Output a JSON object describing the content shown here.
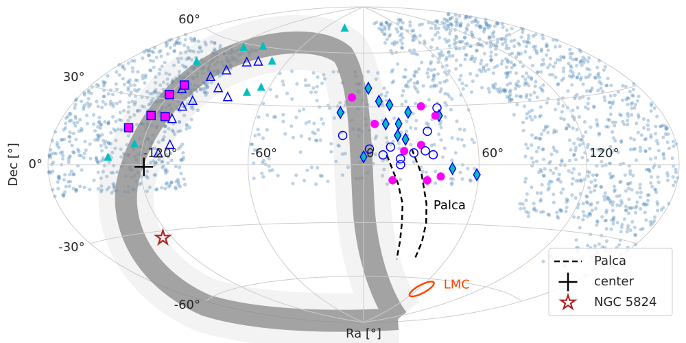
{
  "chart_data": {
    "type": "scatter",
    "projection": "hammer",
    "xlabel": "Ra [°]",
    "ylabel": "Dec [°]",
    "xlim": [
      -180,
      180
    ],
    "ylim": [
      -90,
      90
    ],
    "xticks": [
      {
        "value": -120,
        "label": "-120°"
      },
      {
        "value": -60,
        "label": "-60°"
      },
      {
        "value": 0,
        "label": "0"
      },
      {
        "value": 60,
        "label": "60°"
      },
      {
        "value": 120,
        "label": "120°"
      }
    ],
    "yticks": [
      {
        "value": -60,
        "label": "-60°"
      },
      {
        "value": -30,
        "label": "-30°"
      },
      {
        "value": 0,
        "label": "0°"
      },
      {
        "value": 30,
        "label": "30°"
      },
      {
        "value": 60,
        "label": "60°"
      }
    ],
    "grid": true,
    "legend": "lower right",
    "series": [
      {
        "name": "Palca",
        "marker": "line",
        "color": "#000000",
        "x": [
          12,
          18,
          21,
          22,
          23,
          24,
          null,
          25,
          30,
          34,
          36,
          37,
          37
        ],
        "y": [
          5,
          -10,
          -20,
          -30,
          -40,
          -50,
          null,
          8,
          -5,
          -20,
          -30,
          -40,
          -50
        ]
      },
      {
        "name": "center",
        "marker": "plus",
        "color": "#000000",
        "x": [
          -118
        ],
        "y": [
          -1
        ]
      },
      {
        "name": "NGC 5824",
        "marker": "star",
        "color": "none",
        "edge": "#b22222",
        "x": [
          -126
        ],
        "y": [
          -33
        ]
      },
      {
        "marker": "triangle",
        "color": "none",
        "edge": "#0000ff",
        "x": [
          -110,
          -104,
          -108,
          -102,
          -104,
          -92,
          -82,
          -98,
          -90,
          -82,
          -115,
          -106
        ],
        "y": [
          5,
          9,
          21,
          30,
          42,
          37,
          33,
          46,
          51,
          52,
          35,
          27
        ]
      },
      {
        "marker": "square",
        "color": "#ff00ff",
        "edge": "#0000ff",
        "x": [
          -132,
          -122,
          -113,
          -120,
          -116
        ],
        "y": [
          16,
          22,
          22,
          32,
          37
        ]
      },
      {
        "marker": "triangle",
        "color": "#00bfbf",
        "edge": "none",
        "x": [
          -140,
          -125,
          -128,
          -110,
          -95,
          -72,
          -72,
          -65,
          -30
        ],
        "y": [
          3,
          9,
          48,
          58,
          60,
          53,
          36,
          39,
          75
        ]
      },
      {
        "marker": "diamond",
        "color": "#00bfbf",
        "edge": "#0000ff",
        "x": [
          -13,
          0,
          3,
          9,
          15,
          19,
          25,
          22,
          12,
          46,
          59,
          42,
          18
        ],
        "y": [
          27,
          4,
          40,
          33,
          31,
          21,
          27,
          13,
          21,
          -2,
          -5,
          25,
          15
        ]
      },
      {
        "marker": "circle",
        "color": "#ff00ff",
        "edge": "none",
        "x": [
          -7,
          6,
          33,
          40,
          30,
          40,
          15,
          33,
          21
        ],
        "y": [
          35,
          21,
          30,
          25,
          10,
          -6,
          -8,
          -8,
          7
        ]
      },
      {
        "marker": "circle",
        "color": "none",
        "edge": "#0000ff",
        "x": [
          -11,
          3,
          10,
          19,
          32,
          42,
          34,
          14,
          19,
          36,
          26
        ],
        "y": [
          15,
          8,
          5,
          0,
          7,
          29,
          17,
          9,
          3,
          5,
          6
        ]
      }
    ],
    "annotations": [
      {
        "text": "Palca",
        "x": 38,
        "y": -21,
        "color": "#000000"
      },
      {
        "text": "LMC",
        "x": 65,
        "y": -66,
        "color": "#ff4500"
      }
    ]
  }
}
